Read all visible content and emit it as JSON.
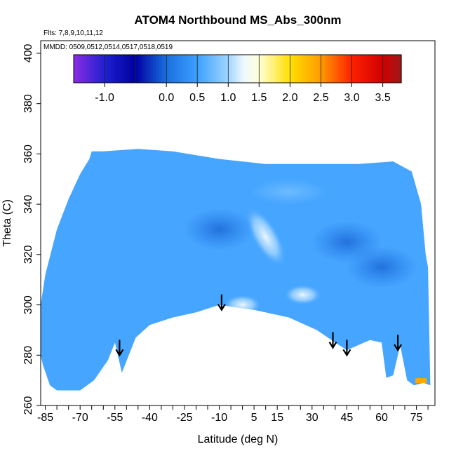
{
  "chart_data": {
    "type": "heatmap",
    "title": "ATOM4 Northbound MS_Abs_300nm",
    "flights_note": "Flts: 7,8,9,10,11,12",
    "dates_note": "MMDD: 0509,0512,0514,0517,0518,0519",
    "xlabel": "Latitude (deg N)",
    "ylabel": "Theta (C)",
    "xlim": [
      -87,
      83
    ],
    "ylim": [
      260,
      405
    ],
    "x_ticks": [
      -85,
      -70,
      -55,
      -40,
      -25,
      -10,
      5,
      15,
      30,
      45,
      60,
      75
    ],
    "y_ticks": [
      260,
      280,
      300,
      320,
      340,
      360,
      380,
      400
    ],
    "colorbar": {
      "tick_values": [
        -1.0,
        0.0,
        0.5,
        1.0,
        1.5,
        2.0,
        2.5,
        3.0,
        3.5
      ],
      "tick_labels": [
        "-1.0",
        "0.0",
        "0.5",
        "1.0",
        "1.5",
        "2.0",
        "2.5",
        "3.0",
        "3.5"
      ],
      "range": [
        -1.5,
        3.8
      ],
      "color_stops": [
        {
          "value": -1.5,
          "color": "#8a2be2"
        },
        {
          "value": -1.0,
          "color": "#2020d0"
        },
        {
          "value": -0.5,
          "color": "#0000a0"
        },
        {
          "value": 0.0,
          "color": "#1a6fe0"
        },
        {
          "value": 0.5,
          "color": "#3ca0ff"
        },
        {
          "value": 1.0,
          "color": "#9fd6ff"
        },
        {
          "value": 1.25,
          "color": "#eef8ff"
        },
        {
          "value": 1.5,
          "color": "#ffffd8"
        },
        {
          "value": 2.0,
          "color": "#ffe000"
        },
        {
          "value": 2.5,
          "color": "#ff9a00"
        },
        {
          "value": 3.0,
          "color": "#ff2000"
        },
        {
          "value": 3.5,
          "color": "#d00000"
        },
        {
          "value": 3.8,
          "color": "#a01818"
        }
      ]
    },
    "field": {
      "background_value": 0.55,
      "region_boundary_top": [
        [
          -87,
          300
        ],
        [
          -85,
          312
        ],
        [
          -80,
          330
        ],
        [
          -75,
          342
        ],
        [
          -70,
          352
        ],
        [
          -66,
          358
        ],
        [
          -65,
          361
        ],
        [
          -60,
          361
        ],
        [
          -45,
          362
        ],
        [
          -30,
          361
        ],
        [
          -10,
          358
        ],
        [
          10,
          356
        ],
        [
          30,
          356
        ],
        [
          50,
          356
        ],
        [
          65,
          357
        ],
        [
          73,
          353
        ],
        [
          77,
          340
        ],
        [
          79,
          320
        ],
        [
          80,
          315
        ]
      ],
      "region_boundary_bottom": [
        [
          80,
          315
        ],
        [
          81,
          268
        ],
        [
          78,
          269
        ],
        [
          74,
          268
        ],
        [
          71,
          270
        ],
        [
          68,
          284
        ],
        [
          65,
          272
        ],
        [
          62,
          271
        ],
        [
          60,
          285
        ],
        [
          55,
          286
        ],
        [
          50,
          284
        ],
        [
          45,
          282
        ],
        [
          40,
          285
        ],
        [
          32,
          290
        ],
        [
          20,
          295
        ],
        [
          5,
          298
        ],
        [
          -10,
          300
        ],
        [
          -20,
          297
        ],
        [
          -30,
          295
        ],
        [
          -40,
          292
        ],
        [
          -46,
          287
        ],
        [
          -52,
          273
        ],
        [
          -55,
          285
        ],
        [
          -58,
          278
        ],
        [
          -64,
          270
        ],
        [
          -70,
          266
        ],
        [
          -80,
          266
        ],
        [
          -83,
          268
        ],
        [
          -86,
          276
        ],
        [
          -87,
          280
        ]
      ],
      "features": [
        {
          "lat": 10,
          "theta": 327,
          "value": 1.2
        },
        {
          "lat": 26,
          "theta": 304,
          "value": 1.3
        },
        {
          "lat": 0,
          "theta": 300,
          "value": 1.1
        },
        {
          "lat": 60,
          "theta": 315,
          "value": 0.1
        },
        {
          "lat": 45,
          "theta": 325,
          "value": 0.2
        },
        {
          "lat": -10,
          "theta": 330,
          "value": 0.35
        },
        {
          "lat": 20,
          "theta": 345,
          "value": 0.9
        },
        {
          "lat": 77,
          "theta": 270,
          "value": 2.4
        },
        {
          "lat": 77,
          "theta": 267,
          "value": 3.2
        }
      ]
    },
    "arrows": [
      {
        "lat": -53,
        "theta": 280
      },
      {
        "lat": -9,
        "theta": 298
      },
      {
        "lat": 39,
        "theta": 283
      },
      {
        "lat": 45,
        "theta": 280
      },
      {
        "lat": 67,
        "theta": 282
      }
    ]
  }
}
